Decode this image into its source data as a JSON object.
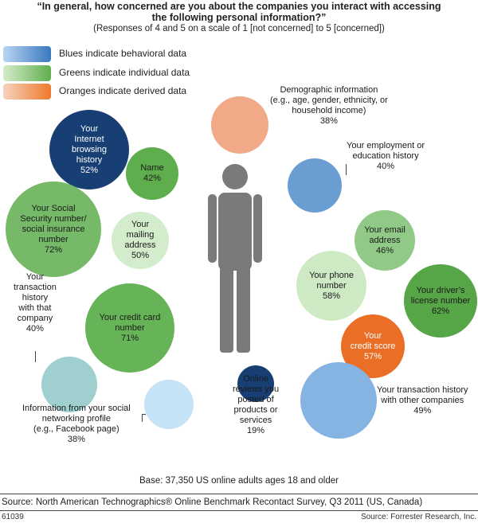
{
  "header": {
    "title_line1": "“In general, how concerned are you about the companies you interact with accessing",
    "title_line2": "the following personal information?”",
    "subtitle": "(Responses of 4 and 5 on a scale of 1 [not concerned] to 5 [concerned])"
  },
  "legend": [
    {
      "text": "Blues indicate behavioral data",
      "color_from": "#b8d6f2",
      "color_to": "#3a78c0"
    },
    {
      "text": "Greens indicate individual data",
      "color_from": "#d6eccb",
      "color_to": "#5fae4e"
    },
    {
      "text": "Oranges indicate derived data",
      "color_from": "#f7d2bd",
      "color_to": "#ee7a2c"
    }
  ],
  "chart_data": {
    "type": "bubble",
    "value_unit": "% of respondents answering 4 or 5",
    "items": [
      {
        "label": [
          "Your",
          "Internet",
          "browsing",
          "history"
        ],
        "value": 52,
        "category": "behavioral",
        "color": "#173f73",
        "text_color": "#ffffff"
      },
      {
        "label": [
          "Name"
        ],
        "value": 42,
        "category": "individual",
        "color": "#5fae4e",
        "text_color": "#1b1b1b"
      },
      {
        "label": [
          "Your Social",
          "Security number/",
          "social insurance",
          "number"
        ],
        "value": 72,
        "category": "individual",
        "color": "#76b968",
        "text_color": "#1b1b1b"
      },
      {
        "label": [
          "Your",
          "mailing",
          "address"
        ],
        "value": 50,
        "category": "individual",
        "color": "#d3eccb",
        "text_color": "#1b1b1b"
      },
      {
        "label": [
          "Your credit card",
          "number"
        ],
        "value": 71,
        "category": "individual",
        "color": "#67b357",
        "text_color": "#1b1b1b"
      },
      {
        "label": [
          "Your",
          "transaction",
          "history",
          "with that",
          "company"
        ],
        "value": 40,
        "category": "behavioral",
        "color": "#9fcfcf",
        "text_color": "#1b1b1b"
      },
      {
        "label": [
          "Information from your social",
          "networking profile",
          "(e.g., Facebook page)"
        ],
        "value": 38,
        "category": "behavioral",
        "color": "#c6e2f7",
        "text_color": "#1b1b1b"
      },
      {
        "label": [
          "Online",
          "reviews you",
          "posted of",
          "products or",
          "services"
        ],
        "value": 19,
        "category": "behavioral",
        "color": "#173f73",
        "text_color": "#1b1b1b"
      },
      {
        "label": [
          "Demographic information",
          "(e.g., age, gender, ethnicity, or",
          "household income)"
        ],
        "value": 38,
        "category": "derived",
        "color": "#f2a987",
        "text_color": "#1b1b1b"
      },
      {
        "label": [
          "Your employment or",
          "education history"
        ],
        "value": 40,
        "category": "behavioral",
        "color": "#6a9ed3",
        "text_color": "#1b1b1b"
      },
      {
        "label": [
          "Your email",
          "address"
        ],
        "value": 46,
        "category": "individual",
        "color": "#91c986",
        "text_color": "#1b1b1b"
      },
      {
        "label": [
          "Your phone",
          "number"
        ],
        "value": 58,
        "category": "individual",
        "color": "#cdeac4",
        "text_color": "#1b1b1b"
      },
      {
        "label": [
          "Your driver’s",
          "license number"
        ],
        "value": 62,
        "category": "individual",
        "color": "#56a547",
        "text_color": "#1b1b1b"
      },
      {
        "label": [
          "Your",
          "credit score"
        ],
        "value": 57,
        "category": "derived",
        "color": "#ea6e26",
        "text_color": "#ffffff"
      },
      {
        "label": [
          "Your transaction history",
          "with other companies"
        ],
        "value": 49,
        "category": "behavioral",
        "color": "#86b4e2",
        "text_color": "#1b1b1b"
      }
    ]
  },
  "footer": {
    "base": "Base: 37,350 US online adults ages 18 and older",
    "source": "Source: North American Technographics® Online Benchmark Recontact Survey, Q3 2011 (US, Canada)",
    "figure_id": "61039",
    "credit": "Source: Forrester Research, Inc."
  }
}
